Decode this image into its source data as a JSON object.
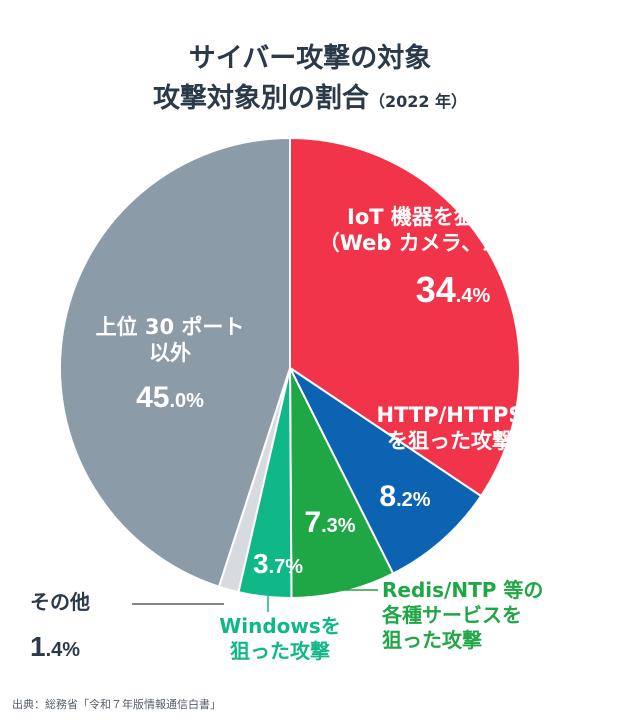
{
  "title_line1": "サイバー攻撃の対象",
  "title_line2": "攻撃対象別の割合",
  "title_year": "（2022 年）",
  "source": "出典：総務省「令和７年版情報通信白書」",
  "colors": {
    "iot": "#f2344a",
    "http": "#0b63b1",
    "redis": "#1fa645",
    "windows": "#10b887",
    "other": "#d7dbdf",
    "top30": "#8c9ba8"
  },
  "labels": {
    "iot_line1": "IoT 機器を狙った攻撃",
    "iot_line2": "（Web カメラ、ルータ等）",
    "iot_int": "34",
    "iot_dec": ".4%",
    "http_line1": "HTTP/HTTPS",
    "http_line2": "を狙った攻撃",
    "http_int": "8",
    "http_dec": ".2%",
    "redis_line1": "Redis/NTP 等の",
    "redis_line2": "各種サービスを",
    "redis_line3": "狙った攻撃",
    "redis_int": "7",
    "redis_dec": ".3%",
    "windows_line1": "Windowsを",
    "windows_line2": "狙った攻撃",
    "windows_int": "3",
    "windows_dec": ".7%",
    "other_line1": "その他",
    "other_int": "1",
    "other_dec": ".4%",
    "top30_line1": "上位 30 ポート",
    "top30_line2": "以外",
    "top30_int": "45",
    "top30_dec": ".0%"
  },
  "chart_data": {
    "type": "pie",
    "title": "サイバー攻撃の対象 攻撃対象別の割合（2022 年）",
    "start": "12 o'clock",
    "direction": "clockwise",
    "slices": [
      {
        "label": "IoT 機器を狙った攻撃（Web カメラ、ルータ等）",
        "value": 34.4
      },
      {
        "label": "HTTP/HTTPS を狙った攻撃",
        "value": 8.2
      },
      {
        "label": "Redis/NTP 等の各種サービスを狙った攻撃",
        "value": 7.3
      },
      {
        "label": "Windowsを狙った攻撃",
        "value": 3.7
      },
      {
        "label": "その他",
        "value": 1.4
      },
      {
        "label": "上位 30 ポート以外",
        "value": 45.0
      }
    ]
  }
}
